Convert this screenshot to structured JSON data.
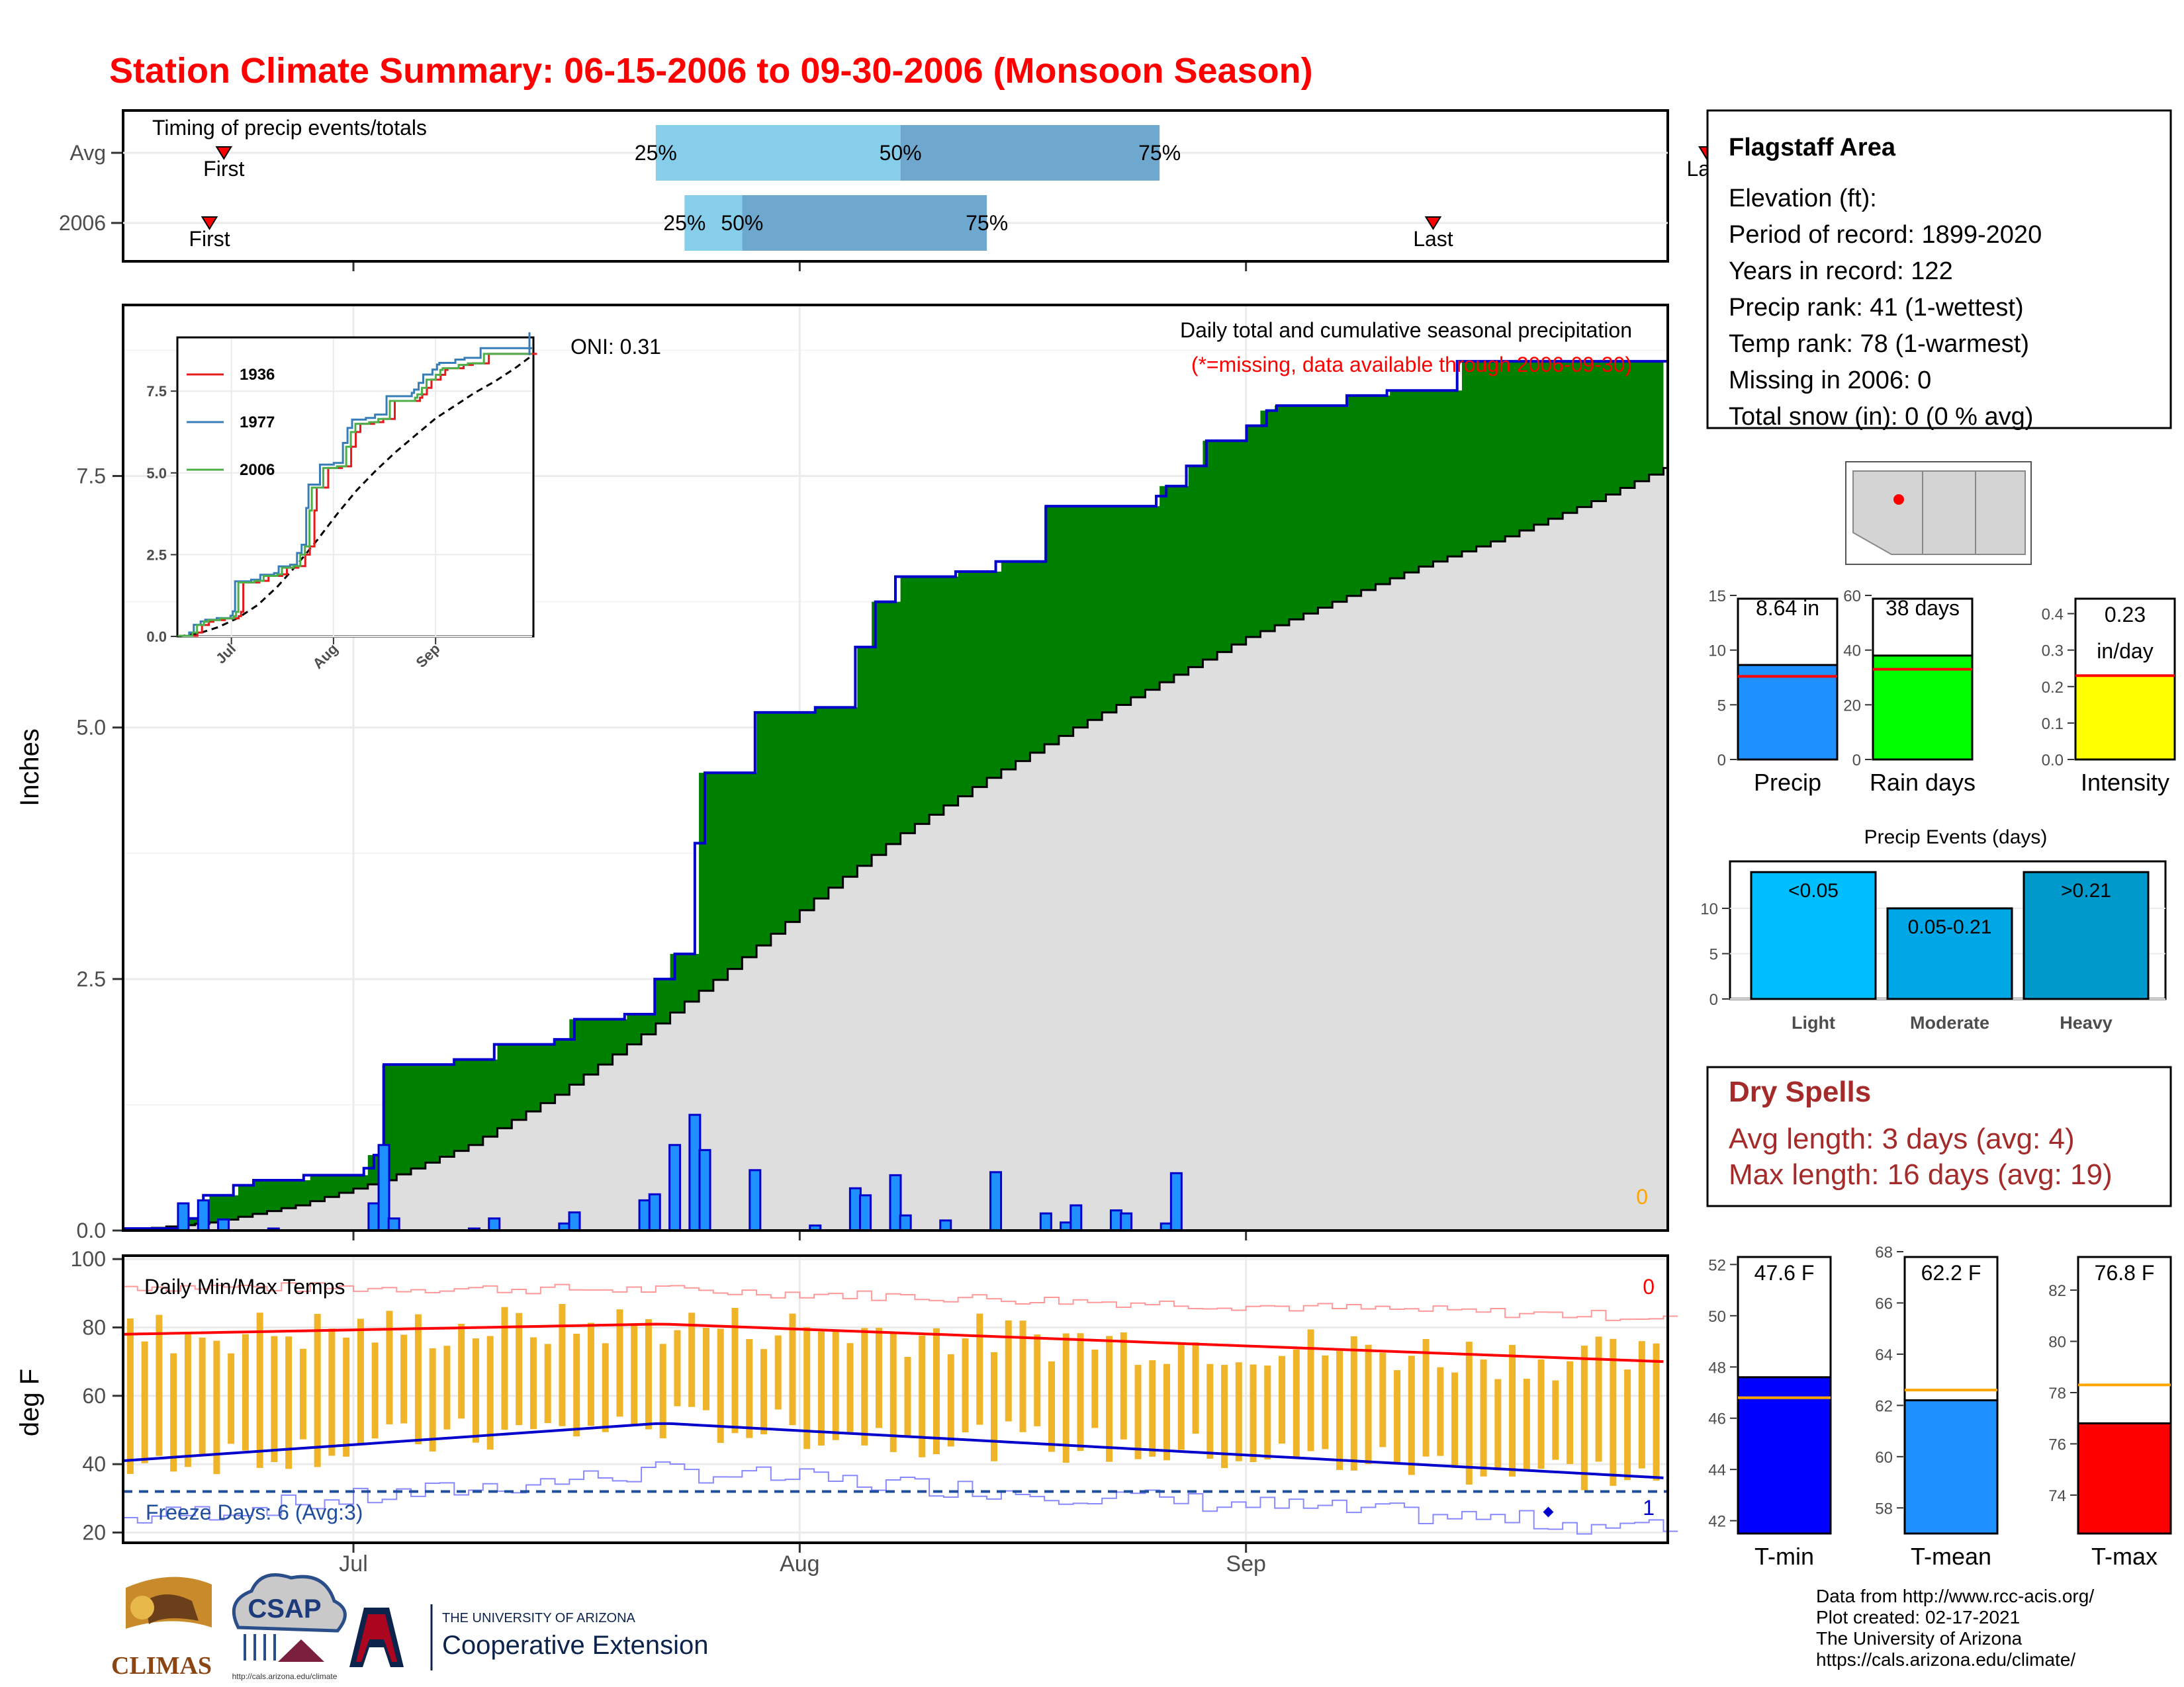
{
  "title": "Station Climate Summary: 06-15-2006 to 09-30-2006 (Monsoon Season)",
  "timing": {
    "label": "Timing of precip events/totals",
    "rows": [
      "Avg",
      "2006"
    ],
    "avg": {
      "first_day": 7,
      "q25_day": 37,
      "q50_day": 54,
      "q75_day": 72,
      "last_day": 110
    },
    "y2006": {
      "first_day": 6,
      "q25_day": 39,
      "q50_day": 43,
      "q75_day": 60,
      "last_day": 91
    },
    "first_label": "First",
    "last_label": "Last",
    "q25_label": "25%",
    "q50_label": "50%",
    "q75_label": "75%"
  },
  "precip_panel": {
    "ylabel": "Inches",
    "yticks": [
      "0.0",
      "2.5",
      "5.0",
      "7.5"
    ],
    "title": "Daily total and cumulative seasonal precipitation",
    "subtitle": "(*=missing, data available through 2006-09-30)",
    "oni": "ONI: 0.31",
    "missing_count": "0"
  },
  "inset": {
    "yticks": [
      "0.0",
      "2.5",
      "5.0",
      "7.5"
    ],
    "xticks": [
      "Jul",
      "Aug",
      "Sep"
    ],
    "legend": [
      {
        "label": "1936",
        "color": "#e41a1c"
      },
      {
        "label": "1977",
        "color": "#377eb8"
      },
      {
        "label": "2006",
        "color": "#4daf4a"
      }
    ]
  },
  "temp_panel": {
    "ylabel": "deg F",
    "yticks": [
      "20",
      "40",
      "60",
      "80",
      "100"
    ],
    "label": "Daily Min/Max Temps",
    "freeze": "Freeze Days: 6 (Avg:3)",
    "top_count": "0",
    "bottom_count": "1"
  },
  "xticks": [
    "Jul",
    "Aug",
    "Sep"
  ],
  "info": {
    "title": "Flagstaff Area",
    "lines": [
      "Elevation (ft):",
      "Period of record: 1899-2020",
      "Years in record: 122",
      "Precip rank: 41 (1-wettest)",
      "Temp rank: 78 (1-warmest)",
      "Missing in 2006: 0",
      "Total snow (in): 0 (0 % avg)"
    ]
  },
  "mini_bars": [
    {
      "label": "Precip",
      "value_text": "8.64 in",
      "value": 8.64,
      "avg": 7.6,
      "yticks": [
        "0",
        "5",
        "10",
        "15"
      ],
      "ymax": 15,
      "color": "#1e90ff"
    },
    {
      "label": "Rain days",
      "value_text": "38 days",
      "value": 38,
      "avg": 33,
      "yticks": [
        "0",
        "20",
        "40",
        "60"
      ],
      "ymax": 60,
      "color": "#00ff00"
    },
    {
      "label": "Intensity",
      "value_text": "0.23 in/day",
      "value_line1": "0.23",
      "value_line2": "in/day",
      "value": 0.23,
      "avg": 0.23,
      "yticks": [
        "0.0",
        "0.1",
        "0.2",
        "0.3",
        "0.4"
      ],
      "ymax": 0.45,
      "color": "#ffff00"
    }
  ],
  "events": {
    "title": "Precip Events (days)",
    "yticks": [
      "0",
      "5",
      "10"
    ],
    "bars": [
      {
        "label": "Light",
        "range": "<0.05",
        "value": 14,
        "color": "#00bfff"
      },
      {
        "label": "Moderate",
        "range": "0.05-0.21",
        "value": 10,
        "color": "#00a7e6"
      },
      {
        "label": "Heavy",
        "range": ">0.21",
        "value": 14,
        "color": "#0099cc"
      }
    ]
  },
  "dry_spells": {
    "title": "Dry Spells",
    "avg": "Avg length: 3 days (avg: 4)",
    "max": "Max length: 16 days (avg: 19)"
  },
  "temp_bars": [
    {
      "label": "T-min",
      "value_text": "47.6 F",
      "value": 47.6,
      "avg": 46.8,
      "ymin": 41.5,
      "ymax": 52.5,
      "yticks": [
        "42",
        "44",
        "46",
        "48",
        "50",
        "52"
      ],
      "color": "#0000ff"
    },
    {
      "label": "T-mean",
      "value_text": "62.2 F",
      "value": 62.2,
      "avg": 62.6,
      "ymin": 57,
      "ymax": 68,
      "yticks": [
        "58",
        "60",
        "62",
        "64",
        "66",
        "68"
      ],
      "color": "#1e90ff"
    },
    {
      "label": "T-max",
      "value_text": "76.8 F",
      "value": 76.8,
      "avg": 78.3,
      "ymin": 72.5,
      "ymax": 83.5,
      "yticks": [
        "74",
        "76",
        "78",
        "80",
        "82"
      ],
      "color": "#ff0000"
    }
  ],
  "footer": [
    "Data from http://www.rcc-acis.org/",
    "Plot created: 02-17-2021",
    "The University of Arizona",
    "https://cals.arizona.edu/climate/"
  ],
  "logos": {
    "climas": "CLIMAS",
    "csap": "CSAP",
    "csap_url": "http://cals.arizona.edu/climate",
    "ua_small": "THE UNIVERSITY OF ARIZONA",
    "ua_big": "Cooperative Extension"
  },
  "chart_data": {
    "type": "area",
    "start_date": "2006-06-15",
    "days": 108,
    "cumulative_2006": {
      "steps": [
        [
          0,
          0.02
        ],
        [
          6,
          0.12
        ],
        [
          8,
          0.35
        ],
        [
          11,
          0.45
        ],
        [
          13,
          0.5
        ],
        [
          18,
          0.55
        ],
        [
          24,
          0.62
        ],
        [
          25,
          0.75
        ],
        [
          26,
          1.65
        ],
        [
          33,
          1.7
        ],
        [
          37,
          1.85
        ],
        [
          43,
          1.9
        ],
        [
          45,
          2.1
        ],
        [
          50,
          2.15
        ],
        [
          53,
          2.5
        ],
        [
          55,
          2.75
        ],
        [
          57,
          3.85
        ],
        [
          58,
          4.55
        ],
        [
          63,
          5.15
        ],
        [
          69,
          5.2
        ],
        [
          73,
          5.8
        ],
        [
          75,
          6.25
        ],
        [
          77,
          6.5
        ],
        [
          83,
          6.55
        ],
        [
          87,
          6.65
        ],
        [
          92,
          7.2
        ],
        [
          103,
          7.3
        ],
        [
          104,
          7.4
        ],
        [
          106,
          7.6
        ],
        [
          108,
          7.85
        ],
        [
          112,
          8.0
        ],
        [
          114,
          8.15
        ],
        [
          115,
          8.2
        ],
        [
          122,
          8.3
        ],
        [
          126,
          8.35
        ],
        [
          133,
          8.64
        ],
        [
          154,
          8.64
        ]
      ],
      "end_value": 8.64
    },
    "cumulative_avg": {
      "end_value": 7.6
    },
    "daily_precip": [
      [
        6,
        0.27
      ],
      [
        8,
        0.3
      ],
      [
        10,
        0.11
      ],
      [
        15,
        0.02
      ],
      [
        25,
        0.27
      ],
      [
        26,
        0.85
      ],
      [
        27,
        0.12
      ],
      [
        35,
        0.02
      ],
      [
        37,
        0.12
      ],
      [
        44,
        0.07
      ],
      [
        45,
        0.18
      ],
      [
        52,
        0.3
      ],
      [
        53,
        0.36
      ],
      [
        55,
        0.85
      ],
      [
        57,
        1.15
      ],
      [
        58,
        0.8
      ],
      [
        63,
        0.6
      ],
      [
        69,
        0.05
      ],
      [
        73,
        0.42
      ],
      [
        74,
        0.35
      ],
      [
        77,
        0.55
      ],
      [
        78,
        0.15
      ],
      [
        82,
        0.1
      ],
      [
        87,
        0.58
      ],
      [
        92,
        0.17
      ],
      [
        94,
        0.08
      ],
      [
        95,
        0.25
      ],
      [
        99,
        0.2
      ],
      [
        100,
        0.17
      ],
      [
        104,
        0.07
      ],
      [
        105,
        0.57
      ]
    ],
    "temp": {
      "tmax_avg_start": 78,
      "tmax_avg_mid": 81,
      "tmax_avg_end": 70,
      "tmin_avg_start": 41,
      "tmin_avg_mid": 52,
      "tmin_avg_end": 36,
      "freeze_line": 32,
      "record_high_range": [
        83,
        92
      ],
      "record_low_range": [
        21,
        38
      ]
    },
    "xlim": [
      "2006-06-15",
      "2006-09-30"
    ],
    "ylim_precip": [
      0,
      9.2
    ],
    "ylim_temp": [
      17,
      101
    ]
  },
  "colors": {
    "title": "#ff0000",
    "green": "#008000",
    "brown": "#6b4a12",
    "gray": "#dedede",
    "blue_line": "#0000cc",
    "orange": "#f0b428",
    "dry_spell": "#a52a2a"
  }
}
